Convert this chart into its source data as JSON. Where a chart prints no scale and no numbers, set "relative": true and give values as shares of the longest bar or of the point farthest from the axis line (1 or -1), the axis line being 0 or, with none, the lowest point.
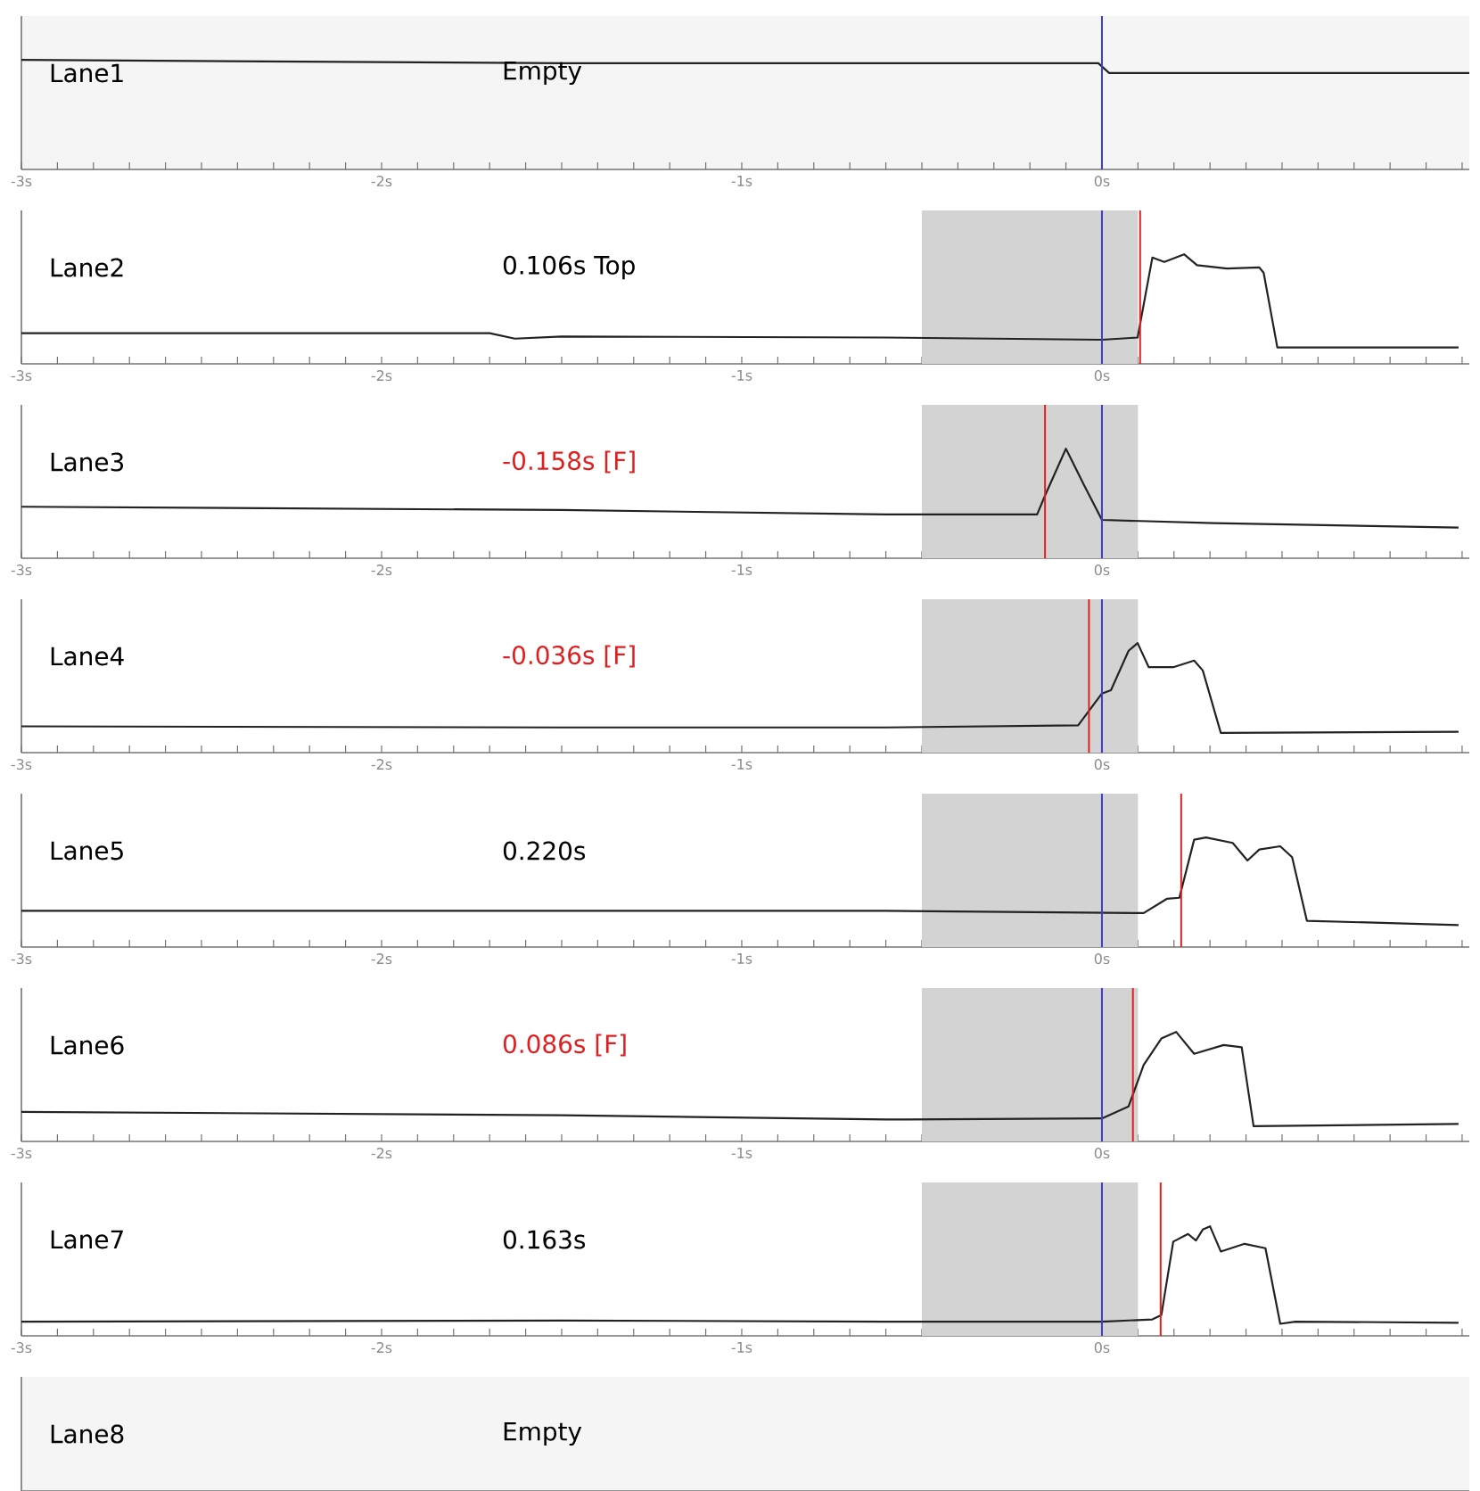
{
  "chart_data": [
    {
      "type": "line",
      "title": "Lane1",
      "annotations": [
        "Empty"
      ],
      "relative": true,
      "xlim": [
        -3,
        1.02
      ],
      "xticks": [
        {
          "value": -3,
          "label": "-3s"
        },
        {
          "value": -2.9,
          "label": null
        },
        {
          "value": -2.8,
          "label": null
        },
        {
          "value": -2.7,
          "label": null
        },
        {
          "value": -2.6,
          "label": null
        },
        {
          "value": -2.5,
          "label": null
        },
        {
          "value": -2.4,
          "label": null
        },
        {
          "value": -2.3,
          "label": null
        },
        {
          "value": -2.2,
          "label": null
        },
        {
          "value": -2.1,
          "label": null
        },
        {
          "value": -2,
          "label": "-2s"
        },
        {
          "value": -1.9,
          "label": null
        },
        {
          "value": -1.8,
          "label": null
        },
        {
          "value": -1.7,
          "label": null
        },
        {
          "value": -1.6,
          "label": null
        },
        {
          "value": -1.5,
          "label": null
        },
        {
          "value": -1.4,
          "label": null
        },
        {
          "value": -1.3,
          "label": null
        },
        {
          "value": -1.2,
          "label": null
        },
        {
          "value": -1.1,
          "label": null
        },
        {
          "value": -1,
          "label": "-1s"
        },
        {
          "value": -0.9,
          "label": null
        },
        {
          "value": -0.8,
          "label": null
        },
        {
          "value": -0.7,
          "label": null
        },
        {
          "value": -0.6,
          "label": null
        },
        {
          "value": -0.5,
          "label": null
        },
        {
          "value": -0.4,
          "label": null
        },
        {
          "value": -0.3,
          "label": null
        },
        {
          "value": -0.2,
          "label": null
        },
        {
          "value": -0.1,
          "label": null
        },
        {
          "value": 0,
          "label": "0s"
        },
        {
          "value": 0.1,
          "label": null
        },
        {
          "value": 0.2,
          "label": null
        },
        {
          "value": 0.3,
          "label": null
        },
        {
          "value": 0.4,
          "label": null
        },
        {
          "value": 0.5,
          "label": null
        },
        {
          "value": 0.6,
          "label": null
        },
        {
          "value": 0.7,
          "label": null
        },
        {
          "value": 0.8,
          "label": null
        },
        {
          "value": 0.9,
          "label": null
        },
        {
          "value": 1,
          "label": null
        }
      ],
      "series": [
        {
          "color": "#222222",
          "x": [
            -3,
            -1.5,
            -0.01,
            0.02,
            1.02
          ],
          "values": [
            1,
            0.97,
            0.97,
            0.88,
            0.88
          ]
        }
      ],
      "ref_lines": [
        {
          "axis": "x",
          "value": 0,
          "color": "#3b3bd6"
        }
      ]
    },
    {
      "type": "line",
      "title": "Lane2",
      "annotations": [
        "0.106s Top"
      ],
      "relative": true,
      "xlim": [
        -3,
        1.02
      ],
      "xticks": [
        {
          "value": -3,
          "label": "-3s"
        },
        {
          "value": -2.9,
          "label": null
        },
        {
          "value": -2.8,
          "label": null
        },
        {
          "value": -2.7,
          "label": null
        },
        {
          "value": -2.6,
          "label": null
        },
        {
          "value": -2.5,
          "label": null
        },
        {
          "value": -2.4,
          "label": null
        },
        {
          "value": -2.3,
          "label": null
        },
        {
          "value": -2.2,
          "label": null
        },
        {
          "value": -2.1,
          "label": null
        },
        {
          "value": -2,
          "label": "-2s"
        },
        {
          "value": -1.9,
          "label": null
        },
        {
          "value": -1.8,
          "label": null
        },
        {
          "value": -1.7,
          "label": null
        },
        {
          "value": -1.6,
          "label": null
        },
        {
          "value": -1.5,
          "label": null
        },
        {
          "value": -1.4,
          "label": null
        },
        {
          "value": -1.3,
          "label": null
        },
        {
          "value": -1.2,
          "label": null
        },
        {
          "value": -1.1,
          "label": null
        },
        {
          "value": -1,
          "label": "-1s"
        },
        {
          "value": -0.9,
          "label": null
        },
        {
          "value": -0.8,
          "label": null
        },
        {
          "value": -0.7,
          "label": null
        },
        {
          "value": -0.6,
          "label": null
        },
        {
          "value": -0.5,
          "label": null
        },
        {
          "value": -0.4,
          "label": null
        },
        {
          "value": -0.3,
          "label": null
        },
        {
          "value": -0.2,
          "label": null
        },
        {
          "value": -0.1,
          "label": null
        },
        {
          "value": 0,
          "label": "0s"
        },
        {
          "value": 0.1,
          "label": null
        },
        {
          "value": 0.2,
          "label": null
        },
        {
          "value": 0.3,
          "label": null
        },
        {
          "value": 0.4,
          "label": null
        },
        {
          "value": 0.5,
          "label": null
        },
        {
          "value": 0.6,
          "label": null
        },
        {
          "value": 0.7,
          "label": null
        },
        {
          "value": 0.8,
          "label": null
        },
        {
          "value": 0.9,
          "label": null
        },
        {
          "value": 1,
          "label": null
        }
      ],
      "series": [
        {
          "color": "#222222",
          "x": [
            -3,
            -1.7,
            -1.63,
            -1.5,
            -0.6,
            0,
            0.099,
            0.14,
            0.173,
            0.228,
            0.264,
            0.347,
            0.437,
            0.449,
            0.487,
            0.99
          ],
          "values": [
            0.28,
            0.28,
            0.23,
            0.25,
            0.24,
            0.22,
            0.24,
            0.97,
            0.93,
            1,
            0.9,
            0.87,
            0.88,
            0.83,
            0.15,
            0.15
          ]
        }
      ],
      "ref_lines": [
        {
          "axis": "x",
          "value": 0,
          "color": "#3b3bd6"
        },
        {
          "axis": "x",
          "value": 0.106,
          "color": "#e02020"
        }
      ],
      "bands": [
        {
          "axis": "x",
          "from": -0.5,
          "to": 0.1,
          "color": "#d3d3d3"
        }
      ]
    },
    {
      "type": "line",
      "title": "Lane3",
      "annotations": [
        "-0.158s [F]"
      ],
      "relative": true,
      "xlim": [
        -3,
        1.02
      ],
      "xticks": [
        {
          "value": -3,
          "label": "-3s"
        },
        {
          "value": -2.9,
          "label": null
        },
        {
          "value": -2.8,
          "label": null
        },
        {
          "value": -2.7,
          "label": null
        },
        {
          "value": -2.6,
          "label": null
        },
        {
          "value": -2.5,
          "label": null
        },
        {
          "value": -2.4,
          "label": null
        },
        {
          "value": -2.3,
          "label": null
        },
        {
          "value": -2.2,
          "label": null
        },
        {
          "value": -2.1,
          "label": null
        },
        {
          "value": -2,
          "label": "-2s"
        },
        {
          "value": -1.9,
          "label": null
        },
        {
          "value": -1.8,
          "label": null
        },
        {
          "value": -1.7,
          "label": null
        },
        {
          "value": -1.6,
          "label": null
        },
        {
          "value": -1.5,
          "label": null
        },
        {
          "value": -1.4,
          "label": null
        },
        {
          "value": -1.3,
          "label": null
        },
        {
          "value": -1.2,
          "label": null
        },
        {
          "value": -1.1,
          "label": null
        },
        {
          "value": -1,
          "label": "-1s"
        },
        {
          "value": -0.9,
          "label": null
        },
        {
          "value": -0.8,
          "label": null
        },
        {
          "value": -0.7,
          "label": null
        },
        {
          "value": -0.6,
          "label": null
        },
        {
          "value": -0.5,
          "label": null
        },
        {
          "value": -0.4,
          "label": null
        },
        {
          "value": -0.3,
          "label": null
        },
        {
          "value": -0.2,
          "label": null
        },
        {
          "value": -0.1,
          "label": null
        },
        {
          "value": 0,
          "label": "0s"
        },
        {
          "value": 0.1,
          "label": null
        },
        {
          "value": 0.2,
          "label": null
        },
        {
          "value": 0.3,
          "label": null
        },
        {
          "value": 0.4,
          "label": null
        },
        {
          "value": 0.5,
          "label": null
        },
        {
          "value": 0.6,
          "label": null
        },
        {
          "value": 0.7,
          "label": null
        },
        {
          "value": 0.8,
          "label": null
        },
        {
          "value": 0.9,
          "label": null
        },
        {
          "value": 1,
          "label": null
        }
      ],
      "series": [
        {
          "color": "#222222",
          "x": [
            -3,
            -1.5,
            -0.6,
            -0.18,
            -0.157,
            -0.1,
            -0.05,
            0,
            0.31,
            0.99
          ],
          "values": [
            0.47,
            0.44,
            0.4,
            0.4,
            0.58,
            1,
            0.67,
            0.35,
            0.32,
            0.28
          ]
        }
      ],
      "ref_lines": [
        {
          "axis": "x",
          "value": 0,
          "color": "#3b3bd6"
        },
        {
          "axis": "x",
          "value": -0.158,
          "color": "#e02020"
        }
      ],
      "bands": [
        {
          "axis": "x",
          "from": -0.5,
          "to": 0.1,
          "color": "#d3d3d3"
        }
      ]
    },
    {
      "type": "line",
      "title": "Lane4",
      "annotations": [
        "-0.036s [F]"
      ],
      "relative": true,
      "xlim": [
        -3,
        1.02
      ],
      "xticks": [
        {
          "value": -3,
          "label": "-3s"
        },
        {
          "value": -2.9,
          "label": null
        },
        {
          "value": -2.8,
          "label": null
        },
        {
          "value": -2.7,
          "label": null
        },
        {
          "value": -2.6,
          "label": null
        },
        {
          "value": -2.5,
          "label": null
        },
        {
          "value": -2.4,
          "label": null
        },
        {
          "value": -2.3,
          "label": null
        },
        {
          "value": -2.2,
          "label": null
        },
        {
          "value": -2.1,
          "label": null
        },
        {
          "value": -2,
          "label": "-2s"
        },
        {
          "value": -1.9,
          "label": null
        },
        {
          "value": -1.8,
          "label": null
        },
        {
          "value": -1.7,
          "label": null
        },
        {
          "value": -1.6,
          "label": null
        },
        {
          "value": -1.5,
          "label": null
        },
        {
          "value": -1.4,
          "label": null
        },
        {
          "value": -1.3,
          "label": null
        },
        {
          "value": -1.2,
          "label": null
        },
        {
          "value": -1.1,
          "label": null
        },
        {
          "value": -1,
          "label": "-1s"
        },
        {
          "value": -0.9,
          "label": null
        },
        {
          "value": -0.8,
          "label": null
        },
        {
          "value": -0.7,
          "label": null
        },
        {
          "value": -0.6,
          "label": null
        },
        {
          "value": -0.5,
          "label": null
        },
        {
          "value": -0.4,
          "label": null
        },
        {
          "value": -0.3,
          "label": null
        },
        {
          "value": -0.2,
          "label": null
        },
        {
          "value": -0.1,
          "label": null
        },
        {
          "value": 0,
          "label": "0s"
        },
        {
          "value": 0.1,
          "label": null
        },
        {
          "value": 0.2,
          "label": null
        },
        {
          "value": 0.3,
          "label": null
        },
        {
          "value": 0.4,
          "label": null
        },
        {
          "value": 0.5,
          "label": null
        },
        {
          "value": 0.6,
          "label": null
        },
        {
          "value": 0.7,
          "label": null
        },
        {
          "value": 0.8,
          "label": null
        },
        {
          "value": 0.9,
          "label": null
        },
        {
          "value": 1,
          "label": null
        }
      ],
      "series": [
        {
          "color": "#222222",
          "x": [
            -3,
            -1.5,
            -0.6,
            -0.066,
            0,
            0.025,
            0.074,
            0.099,
            0.13,
            0.198,
            0.256,
            0.28,
            0.33,
            0.99
          ],
          "values": [
            0.24,
            0.23,
            0.23,
            0.25,
            0.54,
            0.57,
            0.93,
            1,
            0.78,
            0.78,
            0.84,
            0.75,
            0.18,
            0.19
          ]
        }
      ],
      "ref_lines": [
        {
          "axis": "x",
          "value": 0,
          "color": "#3b3bd6"
        },
        {
          "axis": "x",
          "value": -0.036,
          "color": "#e02020"
        }
      ],
      "bands": [
        {
          "axis": "x",
          "from": -0.5,
          "to": 0.1,
          "color": "#d3d3d3"
        }
      ]
    },
    {
      "type": "line",
      "title": "Lane5",
      "annotations": [
        "0.220s"
      ],
      "relative": true,
      "xlim": [
        -3,
        1.02
      ],
      "xticks": [
        {
          "value": -3,
          "label": "-3s"
        },
        {
          "value": -2.9,
          "label": null
        },
        {
          "value": -2.8,
          "label": null
        },
        {
          "value": -2.7,
          "label": null
        },
        {
          "value": -2.6,
          "label": null
        },
        {
          "value": -2.5,
          "label": null
        },
        {
          "value": -2.4,
          "label": null
        },
        {
          "value": -2.3,
          "label": null
        },
        {
          "value": -2.2,
          "label": null
        },
        {
          "value": -2.1,
          "label": null
        },
        {
          "value": -2,
          "label": "-2s"
        },
        {
          "value": -1.9,
          "label": null
        },
        {
          "value": -1.8,
          "label": null
        },
        {
          "value": -1.7,
          "label": null
        },
        {
          "value": -1.6,
          "label": null
        },
        {
          "value": -1.5,
          "label": null
        },
        {
          "value": -1.4,
          "label": null
        },
        {
          "value": -1.3,
          "label": null
        },
        {
          "value": -1.2,
          "label": null
        },
        {
          "value": -1.1,
          "label": null
        },
        {
          "value": -1,
          "label": "-1s"
        },
        {
          "value": -0.9,
          "label": null
        },
        {
          "value": -0.8,
          "label": null
        },
        {
          "value": -0.7,
          "label": null
        },
        {
          "value": -0.6,
          "label": null
        },
        {
          "value": -0.5,
          "label": null
        },
        {
          "value": -0.4,
          "label": null
        },
        {
          "value": -0.3,
          "label": null
        },
        {
          "value": -0.2,
          "label": null
        },
        {
          "value": -0.1,
          "label": null
        },
        {
          "value": 0,
          "label": "0s"
        },
        {
          "value": 0.1,
          "label": null
        },
        {
          "value": 0.2,
          "label": null
        },
        {
          "value": 0.3,
          "label": null
        },
        {
          "value": 0.4,
          "label": null
        },
        {
          "value": 0.5,
          "label": null
        },
        {
          "value": 0.6,
          "label": null
        },
        {
          "value": 0.7,
          "label": null
        },
        {
          "value": 0.8,
          "label": null
        },
        {
          "value": 0.9,
          "label": null
        },
        {
          "value": 1,
          "label": null
        }
      ],
      "series": [
        {
          "color": "#222222",
          "x": [
            -3,
            -1.5,
            -0.6,
            0.116,
            0.18,
            0.215,
            0.256,
            0.289,
            0.363,
            0.404,
            0.437,
            0.495,
            0.528,
            0.569,
            0.99
          ],
          "values": [
            0.33,
            0.33,
            0.33,
            0.31,
            0.44,
            0.45,
            0.98,
            1,
            0.95,
            0.79,
            0.89,
            0.92,
            0.82,
            0.24,
            0.2
          ]
        }
      ],
      "ref_lines": [
        {
          "axis": "x",
          "value": 0,
          "color": "#3b3bd6"
        },
        {
          "axis": "x",
          "value": 0.22,
          "color": "#e02020"
        }
      ],
      "bands": [
        {
          "axis": "x",
          "from": -0.5,
          "to": 0.1,
          "color": "#d3d3d3"
        }
      ]
    },
    {
      "type": "line",
      "title": "Lane6",
      "annotations": [
        "0.086s [F]"
      ],
      "relative": true,
      "xlim": [
        -3,
        1.02
      ],
      "xticks": [
        {
          "value": -3,
          "label": "-3s"
        },
        {
          "value": -2.9,
          "label": null
        },
        {
          "value": -2.8,
          "label": null
        },
        {
          "value": -2.7,
          "label": null
        },
        {
          "value": -2.6,
          "label": null
        },
        {
          "value": -2.5,
          "label": null
        },
        {
          "value": -2.4,
          "label": null
        },
        {
          "value": -2.3,
          "label": null
        },
        {
          "value": -2.2,
          "label": null
        },
        {
          "value": -2.1,
          "label": null
        },
        {
          "value": -2,
          "label": "-2s"
        },
        {
          "value": -1.9,
          "label": null
        },
        {
          "value": -1.8,
          "label": null
        },
        {
          "value": -1.7,
          "label": null
        },
        {
          "value": -1.6,
          "label": null
        },
        {
          "value": -1.5,
          "label": null
        },
        {
          "value": -1.4,
          "label": null
        },
        {
          "value": -1.3,
          "label": null
        },
        {
          "value": -1.2,
          "label": null
        },
        {
          "value": -1.1,
          "label": null
        },
        {
          "value": -1,
          "label": "-1s"
        },
        {
          "value": -0.9,
          "label": null
        },
        {
          "value": -0.8,
          "label": null
        },
        {
          "value": -0.7,
          "label": null
        },
        {
          "value": -0.6,
          "label": null
        },
        {
          "value": -0.5,
          "label": null
        },
        {
          "value": -0.4,
          "label": null
        },
        {
          "value": -0.3,
          "label": null
        },
        {
          "value": -0.2,
          "label": null
        },
        {
          "value": -0.1,
          "label": null
        },
        {
          "value": 0,
          "label": "0s"
        },
        {
          "value": 0.1,
          "label": null
        },
        {
          "value": 0.2,
          "label": null
        },
        {
          "value": 0.3,
          "label": null
        },
        {
          "value": 0.4,
          "label": null
        },
        {
          "value": 0.5,
          "label": null
        },
        {
          "value": 0.6,
          "label": null
        },
        {
          "value": 0.7,
          "label": null
        },
        {
          "value": 0.8,
          "label": null
        },
        {
          "value": 0.9,
          "label": null
        },
        {
          "value": 1,
          "label": null
        }
      ],
      "series": [
        {
          "color": "#222222",
          "x": [
            -3,
            -1.5,
            -0.6,
            0,
            0.074,
            0.116,
            0.165,
            0.206,
            0.256,
            0.338,
            0.388,
            0.421,
            0.99
          ],
          "values": [
            0.27,
            0.24,
            0.2,
            0.21,
            0.32,
            0.7,
            0.94,
            1,
            0.8,
            0.88,
            0.86,
            0.14,
            0.16
          ]
        }
      ],
      "ref_lines": [
        {
          "axis": "x",
          "value": 0,
          "color": "#3b3bd6"
        },
        {
          "axis": "x",
          "value": 0.086,
          "color": "#e02020"
        }
      ],
      "bands": [
        {
          "axis": "x",
          "from": -0.5,
          "to": 0.1,
          "color": "#d3d3d3"
        }
      ]
    },
    {
      "type": "line",
      "title": "Lane7",
      "annotations": [
        "0.163s"
      ],
      "relative": true,
      "xlim": [
        -3,
        1.02
      ],
      "xticks": [
        {
          "value": -3,
          "label": "-3s"
        },
        {
          "value": -2.9,
          "label": null
        },
        {
          "value": -2.8,
          "label": null
        },
        {
          "value": -2.7,
          "label": null
        },
        {
          "value": -2.6,
          "label": null
        },
        {
          "value": -2.5,
          "label": null
        },
        {
          "value": -2.4,
          "label": null
        },
        {
          "value": -2.3,
          "label": null
        },
        {
          "value": -2.2,
          "label": null
        },
        {
          "value": -2.1,
          "label": null
        },
        {
          "value": -2,
          "label": "-2s"
        },
        {
          "value": -1.9,
          "label": null
        },
        {
          "value": -1.8,
          "label": null
        },
        {
          "value": -1.7,
          "label": null
        },
        {
          "value": -1.6,
          "label": null
        },
        {
          "value": -1.5,
          "label": null
        },
        {
          "value": -1.4,
          "label": null
        },
        {
          "value": -1.3,
          "label": null
        },
        {
          "value": -1.2,
          "label": null
        },
        {
          "value": -1.1,
          "label": null
        },
        {
          "value": -1,
          "label": "-1s"
        },
        {
          "value": -0.9,
          "label": null
        },
        {
          "value": -0.8,
          "label": null
        },
        {
          "value": -0.7,
          "label": null
        },
        {
          "value": -0.6,
          "label": null
        },
        {
          "value": -0.5,
          "label": null
        },
        {
          "value": -0.4,
          "label": null
        },
        {
          "value": -0.3,
          "label": null
        },
        {
          "value": -0.2,
          "label": null
        },
        {
          "value": -0.1,
          "label": null
        },
        {
          "value": 0,
          "label": "0s"
        },
        {
          "value": 0.1,
          "label": null
        },
        {
          "value": 0.2,
          "label": null
        },
        {
          "value": 0.3,
          "label": null
        },
        {
          "value": 0.4,
          "label": null
        },
        {
          "value": 0.5,
          "label": null
        },
        {
          "value": 0.6,
          "label": null
        },
        {
          "value": 0.7,
          "label": null
        },
        {
          "value": 0.8,
          "label": null
        },
        {
          "value": 0.9,
          "label": null
        },
        {
          "value": 1,
          "label": null
        }
      ],
      "series": [
        {
          "color": "#222222",
          "x": [
            -3,
            -1.5,
            -0.6,
            0,
            0.14,
            0.165,
            0.198,
            0.239,
            0.261,
            0.28,
            0.3,
            0.33,
            0.396,
            0.454,
            0.495,
            0.537,
            0.99
          ],
          "values": [
            0.13,
            0.14,
            0.13,
            0.13,
            0.15,
            0.19,
            0.86,
            0.93,
            0.87,
            0.97,
            1,
            0.77,
            0.84,
            0.8,
            0.11,
            0.13,
            0.12
          ]
        }
      ],
      "ref_lines": [
        {
          "axis": "x",
          "value": 0,
          "color": "#3b3bd6"
        },
        {
          "axis": "x",
          "value": 0.163,
          "color": "#e02020"
        }
      ],
      "bands": [
        {
          "axis": "x",
          "from": -0.5,
          "to": 0.1,
          "color": "#d3d3d3"
        }
      ]
    },
    {
      "type": "other",
      "title": "Lane8",
      "annotations": [
        "Empty"
      ]
    }
  ]
}
